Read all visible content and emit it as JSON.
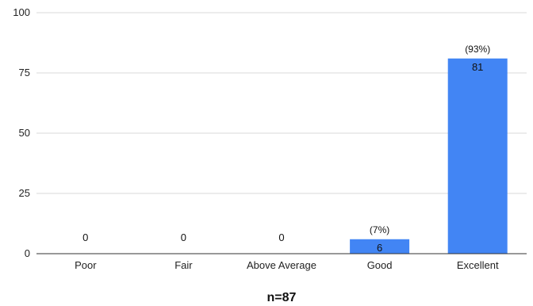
{
  "chart_data": {
    "type": "bar",
    "categories": [
      "Poor",
      "Fair",
      "Above Average",
      "Good",
      "Excellent"
    ],
    "values": [
      0,
      0,
      0,
      6,
      81
    ],
    "value_labels": [
      "0",
      "0",
      "0",
      "6",
      "81"
    ],
    "percent_labels": [
      "",
      "",
      "",
      "(7%)",
      "(93%)"
    ],
    "ylim": [
      0,
      100
    ],
    "yticks": [
      0,
      25,
      50,
      75,
      100
    ],
    "ytick_labels": [
      "0",
      "25",
      "50",
      "75",
      "100"
    ],
    "footer": "n=87",
    "grid": true,
    "bar_color": "#4285f4",
    "grid_color": "#d9d9d9",
    "axis_color": "#333333"
  }
}
